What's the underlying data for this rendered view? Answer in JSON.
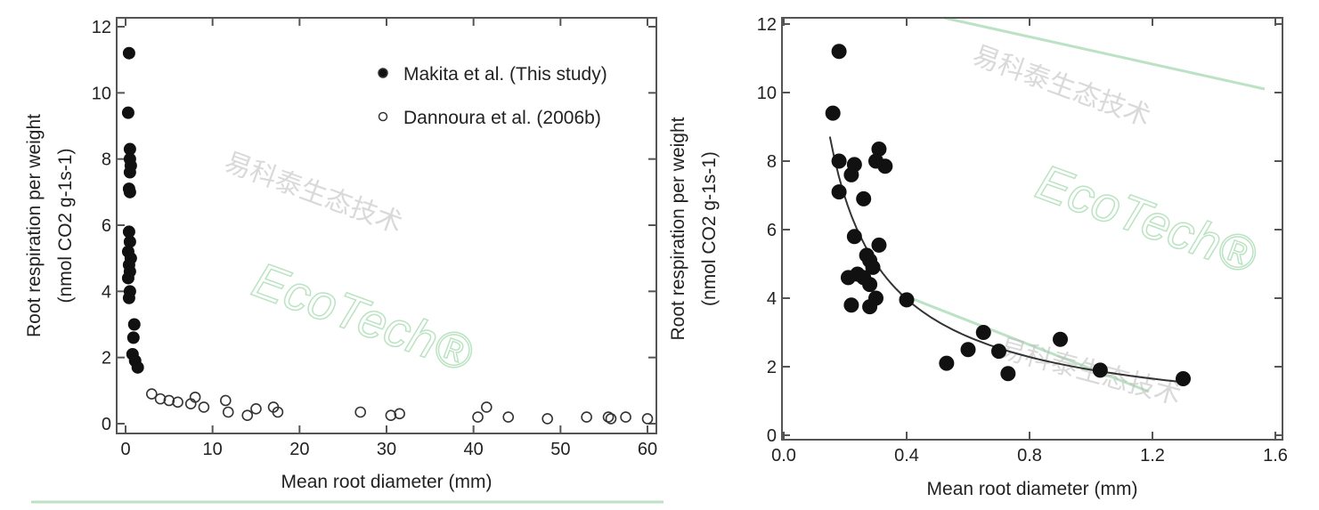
{
  "watermark": {
    "brand": "EcoTech®",
    "chinese": "易科泰生态技术"
  },
  "chart_data": [
    {
      "type": "scatter",
      "xlabel": "Mean root diameter (mm)",
      "ylabel": "Root respiration per weight",
      "ylabel_units": "(nmol CO2 g-1s-1)",
      "xlim": [
        0,
        60
      ],
      "ylim": [
        0,
        12
      ],
      "xticks": [
        "0",
        "10",
        "20",
        "30",
        "40",
        "50",
        "60"
      ],
      "yticks": [
        "0",
        "2",
        "4",
        "6",
        "8",
        "10",
        "12"
      ],
      "legend_position": "top-right",
      "series": [
        {
          "name": "Makita et al. (This study)",
          "marker": "filled-circle",
          "points": [
            [
              0.4,
              11.2
            ],
            [
              0.3,
              9.4
            ],
            [
              0.5,
              8.3
            ],
            [
              0.5,
              8.0
            ],
            [
              0.6,
              7.8
            ],
            [
              0.5,
              7.6
            ],
            [
              0.4,
              7.1
            ],
            [
              0.5,
              7.0
            ],
            [
              0.4,
              5.8
            ],
            [
              0.5,
              5.5
            ],
            [
              0.3,
              5.2
            ],
            [
              0.6,
              5.0
            ],
            [
              0.4,
              4.8
            ],
            [
              0.5,
              4.6
            ],
            [
              0.3,
              4.4
            ],
            [
              0.5,
              4.0
            ],
            [
              0.4,
              3.8
            ],
            [
              1.0,
              3.0
            ],
            [
              0.9,
              2.6
            ],
            [
              0.8,
              2.1
            ],
            [
              1.1,
              1.9
            ],
            [
              1.4,
              1.7
            ]
          ]
        },
        {
          "name": "Dannoura et al. (2006b)",
          "marker": "open-circle",
          "points": [
            [
              3,
              0.9
            ],
            [
              4,
              0.75
            ],
            [
              5,
              0.7
            ],
            [
              6,
              0.65
            ],
            [
              7.5,
              0.6
            ],
            [
              8,
              0.8
            ],
            [
              9,
              0.5
            ],
            [
              11.5,
              0.7
            ],
            [
              11.8,
              0.35
            ],
            [
              14,
              0.25
            ],
            [
              15,
              0.45
            ],
            [
              17,
              0.5
            ],
            [
              17.5,
              0.35
            ],
            [
              27,
              0.35
            ],
            [
              30.5,
              0.25
            ],
            [
              31.5,
              0.3
            ],
            [
              40.5,
              0.2
            ],
            [
              41.5,
              0.5
            ],
            [
              44,
              0.2
            ],
            [
              48.5,
              0.15
            ],
            [
              53,
              0.2
            ],
            [
              55.5,
              0.2
            ],
            [
              55.8,
              0.15
            ],
            [
              57.5,
              0.2
            ],
            [
              60,
              0.15
            ]
          ]
        }
      ]
    },
    {
      "type": "scatter",
      "xlabel": "Mean root diameter (mm)",
      "ylabel": "Root respiration per weight",
      "ylabel_units": "(nmol CO2 g-1s-1)",
      "xlim": [
        0,
        1.6
      ],
      "ylim": [
        0,
        12
      ],
      "xticks": [
        "0.0",
        "0.4",
        "0.8",
        "1.2",
        "1.6"
      ],
      "yticks": [
        "0",
        "2",
        "4",
        "6",
        "8",
        "10",
        "12"
      ],
      "series": [
        {
          "name": "Makita et al. (This study)",
          "marker": "filled-circle",
          "points": [
            [
              0.18,
              11.2
            ],
            [
              0.16,
              9.4
            ],
            [
              0.18,
              8.0
            ],
            [
              0.23,
              7.9
            ],
            [
              0.22,
              7.6
            ],
            [
              0.18,
              7.1
            ],
            [
              0.26,
              6.9
            ],
            [
              0.31,
              8.35
            ],
            [
              0.3,
              8.0
            ],
            [
              0.33,
              7.85
            ],
            [
              0.23,
              5.8
            ],
            [
              0.31,
              5.55
            ],
            [
              0.27,
              5.25
            ],
            [
              0.28,
              5.1
            ],
            [
              0.29,
              4.9
            ],
            [
              0.21,
              4.6
            ],
            [
              0.24,
              4.7
            ],
            [
              0.26,
              4.6
            ],
            [
              0.28,
              4.4
            ],
            [
              0.22,
              3.8
            ],
            [
              0.3,
              4.0
            ],
            [
              0.28,
              3.75
            ],
            [
              0.4,
              3.95
            ],
            [
              0.53,
              2.1
            ],
            [
              0.6,
              2.5
            ],
            [
              0.65,
              3.0
            ],
            [
              0.7,
              2.45
            ],
            [
              0.73,
              1.8
            ],
            [
              0.9,
              2.8
            ],
            [
              1.03,
              1.9
            ],
            [
              1.3,
              1.65
            ]
          ]
        }
      ],
      "fit": {
        "type": "power",
        "a": 1.91,
        "b": -0.8,
        "xrange": [
          0.15,
          1.3
        ]
      }
    }
  ]
}
